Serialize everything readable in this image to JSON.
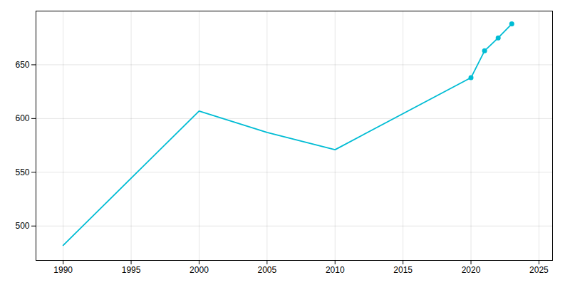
{
  "chart_data": {
    "type": "line",
    "x": [
      1990,
      2000,
      2005,
      2010,
      2020,
      2021,
      2022,
      2023
    ],
    "values": [
      482,
      607,
      587,
      571,
      638,
      663,
      675,
      688
    ],
    "color": "#00BCD4",
    "marker": "circle",
    "marker_x": [
      2020,
      2021,
      2022,
      2023
    ],
    "xlim": [
      1988,
      2026
    ],
    "ylim": [
      468,
      700
    ],
    "xticks": [
      1990,
      1995,
      2000,
      2005,
      2010,
      2015,
      2020,
      2025
    ],
    "yticks": [
      500,
      550,
      600,
      650
    ],
    "grid": true
  }
}
